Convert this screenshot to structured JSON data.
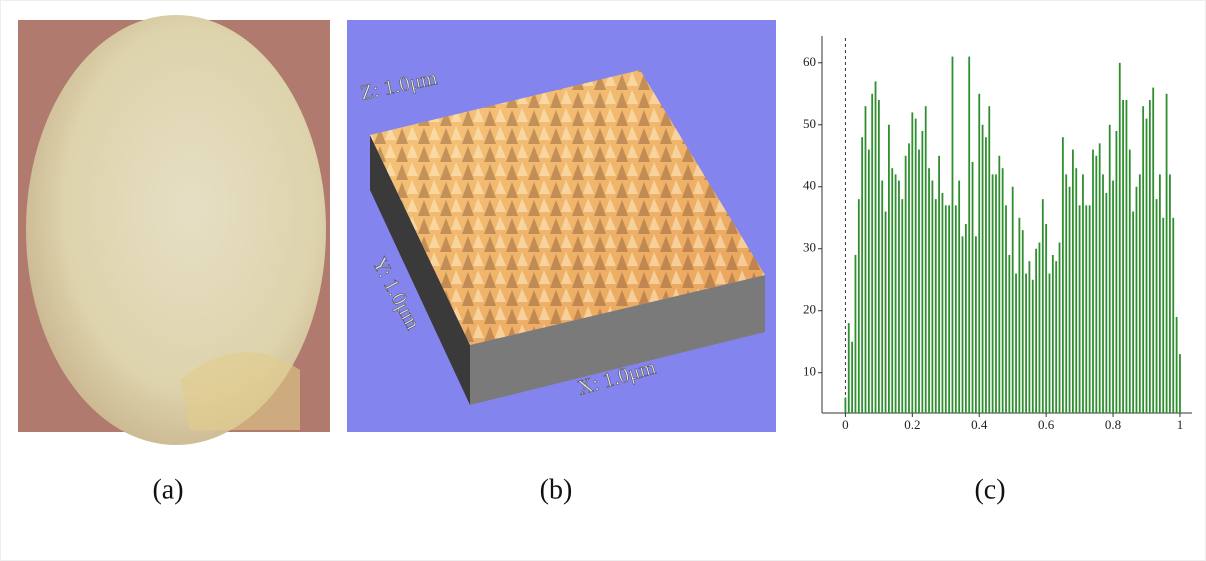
{
  "panels": [
    {
      "caption": "(a)"
    },
    {
      "caption": "(b)",
      "labels": [
        "Z: 1.0μm",
        "Y: 1.0μm",
        "X: 1.0μm"
      ]
    },
    {
      "caption": "(c)"
    }
  ],
  "chart_data": {
    "type": "bar",
    "color": "#2f8f2f",
    "x": [
      0,
      0.01,
      0.02,
      0.03,
      0.04,
      0.05,
      0.06,
      0.07,
      0.08,
      0.09,
      0.1,
      0.11,
      0.12,
      0.13,
      0.14,
      0.15,
      0.16,
      0.17,
      0.18,
      0.19,
      0.2,
      0.21,
      0.22,
      0.23,
      0.24,
      0.25,
      0.26,
      0.27,
      0.28,
      0.29,
      0.3,
      0.31,
      0.32,
      0.33,
      0.34,
      0.35,
      0.36,
      0.37,
      0.38,
      0.39,
      0.4,
      0.41,
      0.42,
      0.43,
      0.44,
      0.45,
      0.46,
      0.47,
      0.48,
      0.49,
      0.5,
      0.51,
      0.52,
      0.53,
      0.54,
      0.55,
      0.56,
      0.57,
      0.58,
      0.59,
      0.6,
      0.61,
      0.62,
      0.63,
      0.64,
      0.65,
      0.66,
      0.67,
      0.68,
      0.69,
      0.7,
      0.71,
      0.72,
      0.73,
      0.74,
      0.75,
      0.76,
      0.77,
      0.78,
      0.79,
      0.8,
      0.81,
      0.82,
      0.83,
      0.84,
      0.85,
      0.86,
      0.87,
      0.88,
      0.89,
      0.9,
      0.91,
      0.92,
      0.93,
      0.94,
      0.95,
      0.96,
      0.97,
      0.98,
      0.99,
      1
    ],
    "values": [
      6,
      18,
      15,
      29,
      38,
      48,
      53,
      46,
      55,
      57,
      54,
      41,
      36,
      50,
      43,
      42,
      41,
      38,
      45,
      47,
      52,
      51,
      46,
      49,
      53,
      43,
      41,
      38,
      45,
      39,
      37,
      37,
      61,
      37,
      41,
      32,
      34,
      61,
      44,
      32,
      55,
      50,
      48,
      53,
      42,
      42,
      45,
      43,
      37,
      29,
      40,
      26,
      35,
      33,
      26,
      28,
      25,
      30,
      31,
      38,
      34,
      26,
      29,
      28,
      31,
      48,
      42,
      40,
      46,
      43,
      37,
      42,
      37,
      37,
      46,
      45,
      47,
      42,
      39,
      50,
      41,
      49,
      60,
      54,
      54,
      46,
      36,
      40,
      42,
      53,
      51,
      54,
      56,
      38,
      42,
      35,
      55,
      42,
      35,
      19,
      13
    ],
    "xlim": [
      -0.07,
      1.03
    ],
    "ylim": [
      3.5,
      64
    ],
    "xticks": [
      0,
      0.2,
      0.4,
      0.6,
      0.8,
      1
    ],
    "yticks": [
      10,
      20,
      30,
      40,
      50,
      60
    ]
  }
}
